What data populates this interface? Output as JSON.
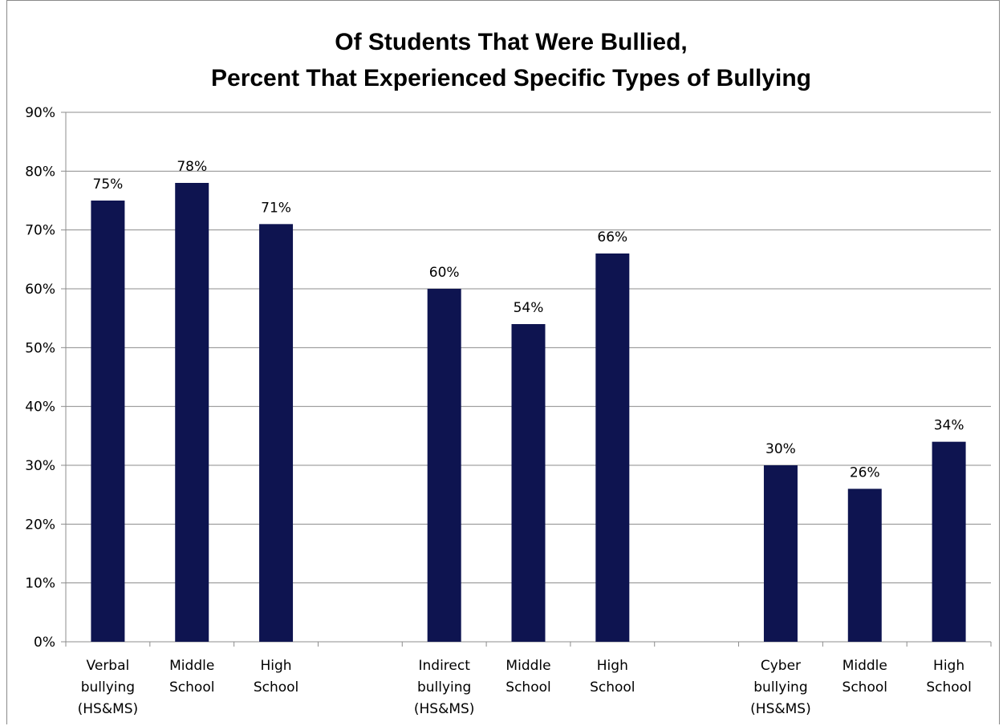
{
  "chart_data": {
    "type": "bar",
    "title_lines": [
      "Of Students That Were Bullied,",
      "Percent That Experienced Specific Types of Bullying"
    ],
    "xlabel": "",
    "ylabel": "",
    "ylim": [
      0,
      90
    ],
    "y_ticks": [
      "0%",
      "10%",
      "20%",
      "30%",
      "40%",
      "50%",
      "60%",
      "70%",
      "80%",
      "90%"
    ],
    "grid": true,
    "legend": "none",
    "bar_color": "#0e1450",
    "categories": [
      [
        "Verbal",
        "bullying",
        "(HS&MS)"
      ],
      [
        "Middle",
        "School"
      ],
      [
        "High",
        "School"
      ],
      [],
      [
        "Indirect",
        "bullying",
        "(HS&MS)"
      ],
      [
        "Middle",
        "School"
      ],
      [
        "High",
        "School"
      ],
      [],
      [
        "Cyber",
        "bullying",
        "(HS&MS)"
      ],
      [
        "Middle",
        "School"
      ],
      [
        "High",
        "School"
      ]
    ],
    "values": [
      75,
      78,
      71,
      null,
      60,
      54,
      66,
      null,
      30,
      26,
      34
    ],
    "data_labels": [
      "75%",
      "78%",
      "71%",
      "",
      "60%",
      "54%",
      "66%",
      "",
      "30%",
      "26%",
      "34%"
    ]
  }
}
